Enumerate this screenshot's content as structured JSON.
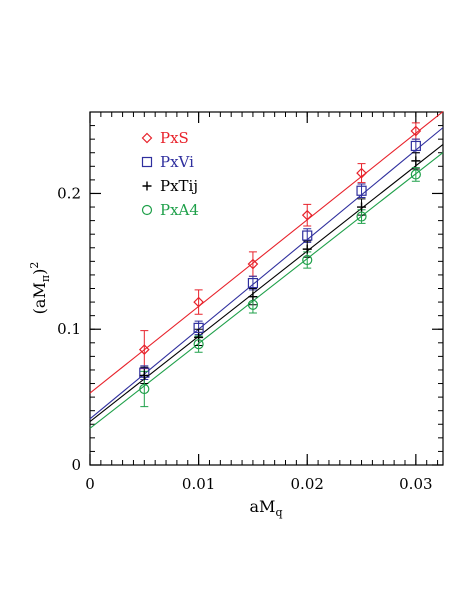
{
  "chart_data": {
    "type": "scatter",
    "title": "",
    "xlabel": {
      "base": "aM",
      "sub": "q",
      "sup": ""
    },
    "ylabel": {
      "open": "(aM",
      "sub": "π",
      "close": ")",
      "sup": "2"
    },
    "xlim": [
      0,
      0.0325
    ],
    "ylim": [
      0,
      0.26
    ],
    "xticks": [
      {
        "value": 0,
        "label": "0"
      },
      {
        "value": 0.01,
        "label": "0.01"
      },
      {
        "value": 0.02,
        "label": "0.02"
      },
      {
        "value": 0.03,
        "label": "0.03"
      }
    ],
    "yticks": [
      {
        "value": 0,
        "label": "0"
      },
      {
        "value": 0.1,
        "label": "0.1"
      },
      {
        "value": 0.2,
        "label": "0.2"
      }
    ],
    "x_minor_step": 0.001,
    "y_minor_step": 0.01,
    "grid": false,
    "legend_position": "top-left",
    "series": [
      {
        "name": "PxS",
        "marker": "diamond",
        "color": "#e8222b",
        "x": [
          0.005,
          0.01,
          0.015,
          0.02,
          0.025,
          0.03
        ],
        "y": [
          0.085,
          0.12,
          0.148,
          0.184,
          0.215,
          0.246
        ],
        "err": [
          0.014,
          0.009,
          0.009,
          0.008,
          0.007,
          0.006
        ],
        "fit": {
          "intercept": 0.053,
          "slope": 6.38
        }
      },
      {
        "name": "PxVi",
        "marker": "square",
        "color": "#2f2f9e",
        "x": [
          0.005,
          0.01,
          0.015,
          0.02,
          0.025,
          0.03
        ],
        "y": [
          0.068,
          0.101,
          0.134,
          0.169,
          0.202,
          0.235
        ],
        "err": [
          0.005,
          0.005,
          0.005,
          0.005,
          0.005,
          0.005
        ],
        "fit": {
          "intercept": 0.034,
          "slope": 6.6
        }
      },
      {
        "name": "PxTij",
        "marker": "cross",
        "color": "#000000",
        "x": [
          0.005,
          0.01,
          0.015,
          0.02,
          0.025,
          0.03
        ],
        "y": [
          0.066,
          0.094,
          0.124,
          0.159,
          0.19,
          0.224
        ],
        "err": [
          0.006,
          0.006,
          0.006,
          0.006,
          0.006,
          0.006
        ],
        "fit": {
          "intercept": 0.032,
          "slope": 6.28
        }
      },
      {
        "name": "PxA4",
        "marker": "circle",
        "color": "#1fa04a",
        "x": [
          0.005,
          0.01,
          0.015,
          0.02,
          0.025,
          0.03
        ],
        "y": [
          0.056,
          0.089,
          0.118,
          0.151,
          0.183,
          0.214
        ],
        "err": [
          0.013,
          0.006,
          0.006,
          0.006,
          0.005,
          0.005
        ],
        "fit": {
          "intercept": 0.027,
          "slope": 6.25
        }
      }
    ]
  }
}
